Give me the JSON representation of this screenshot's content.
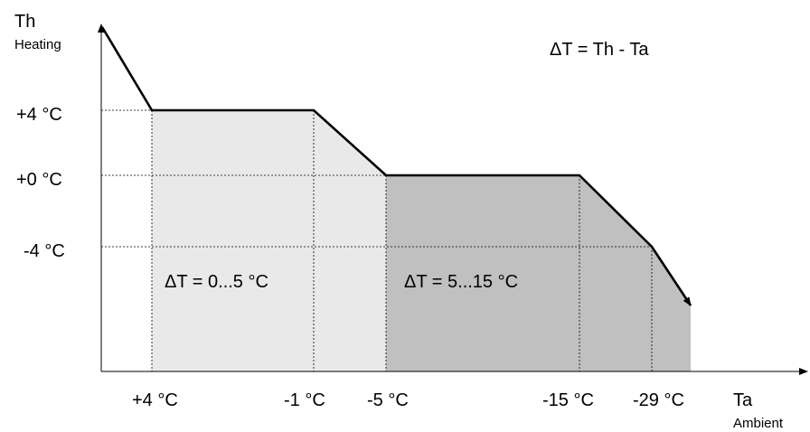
{
  "axes": {
    "y_label": "Th",
    "y_sublabel": "Heating",
    "x_label": "Ta",
    "x_sublabel": "Ambient"
  },
  "formula": "ΔT = Th - Ta",
  "y_ticks": [
    "+4 °C",
    "+0 °C",
    "-4 °C"
  ],
  "x_ticks": [
    "+4 °C",
    "-1 °C",
    "-5 °C",
    "-15 °C",
    "-29 °C"
  ],
  "regions": [
    {
      "label": "ΔT = 0...5 °C",
      "color": "#e9e9e9"
    },
    {
      "label": "ΔT = 5...15 °C",
      "color": "#c0c0c0"
    }
  ],
  "curve_color": "#000000"
}
